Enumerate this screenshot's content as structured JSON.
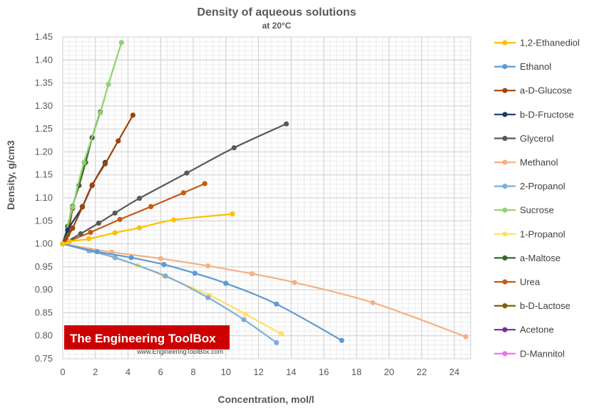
{
  "chart_data": {
    "type": "line",
    "title": "Density of aqueous solutions",
    "subtitle": "at 20°C",
    "xlabel": "Concentration, mol/l",
    "ylabel": "Density, g/cm3",
    "xlim": [
      0,
      25
    ],
    "ylim": [
      0.75,
      1.45
    ],
    "xticks": [
      0,
      2,
      4,
      6,
      8,
      10,
      12,
      14,
      16,
      18,
      20,
      22,
      24
    ],
    "yticks": [
      "0.75",
      "0.80",
      "0.85",
      "0.90",
      "0.95",
      "1.00",
      "1.05",
      "1.10",
      "1.15",
      "1.20",
      "1.25",
      "1.30",
      "1.35",
      "1.40",
      "1.45"
    ],
    "grid": true,
    "legend_position": "right",
    "series": [
      {
        "name": "1,2-Ethanediol",
        "color": "#FFC000",
        "points": [
          [
            0,
            1.0
          ],
          [
            0.4,
            1.005
          ],
          [
            1.6,
            1.011
          ],
          [
            3.2,
            1.024
          ],
          [
            4.7,
            1.035
          ],
          [
            6.8,
            1.052
          ],
          [
            10.4,
            1.065
          ]
        ]
      },
      {
        "name": "Ethanol",
        "color": "#5B9BD5",
        "points": [
          [
            0,
            1.0
          ],
          [
            2.1,
            0.983
          ],
          [
            4.2,
            0.97
          ],
          [
            6.2,
            0.955
          ],
          [
            8.1,
            0.936
          ],
          [
            10.0,
            0.914
          ],
          [
            13.1,
            0.869
          ],
          [
            17.1,
            0.79
          ]
        ]
      },
      {
        "name": "a-D-Glucose",
        "color": "#A0430A",
        "points": [
          [
            0,
            1.0
          ],
          [
            0.2,
            1.008
          ],
          [
            0.6,
            1.034
          ],
          [
            1.2,
            1.08
          ],
          [
            1.8,
            1.128
          ],
          [
            2.6,
            1.174
          ],
          [
            3.4,
            1.224
          ],
          [
            4.3,
            1.28
          ]
        ]
      },
      {
        "name": "b-D-Fructose",
        "color": "#203864",
        "points": [
          [
            0,
            1.0
          ],
          [
            0.3,
            1.03
          ],
          [
            1.2,
            1.081
          ],
          [
            1.8,
            1.127
          ],
          [
            2.6,
            1.177
          ]
        ]
      },
      {
        "name": "Glycerol",
        "color": "#595959",
        "points": [
          [
            0,
            1.0
          ],
          [
            1.1,
            1.022
          ],
          [
            2.2,
            1.045
          ],
          [
            3.2,
            1.067
          ],
          [
            4.7,
            1.099
          ],
          [
            7.6,
            1.154
          ],
          [
            10.5,
            1.209
          ],
          [
            13.7,
            1.261
          ]
        ]
      },
      {
        "name": "Methanol",
        "color": "#F4B183",
        "points": [
          [
            0,
            1.0
          ],
          [
            3.0,
            0.982
          ],
          [
            6.0,
            0.968
          ],
          [
            8.9,
            0.952
          ],
          [
            11.6,
            0.935
          ],
          [
            14.2,
            0.916
          ],
          [
            19.0,
            0.872
          ],
          [
            24.7,
            0.798
          ]
        ]
      },
      {
        "name": "2-Propanol",
        "color": "#7EAED8",
        "points": [
          [
            0,
            1.0
          ],
          [
            1.6,
            0.985
          ],
          [
            3.2,
            0.97
          ],
          [
            6.3,
            0.93
          ],
          [
            8.9,
            0.883
          ],
          [
            11.1,
            0.835
          ],
          [
            13.1,
            0.785
          ]
        ]
      },
      {
        "name": "Sucrose",
        "color": "#8FD170",
        "points": [
          [
            0,
            1.0
          ],
          [
            0.6,
            1.08
          ],
          [
            1.3,
            1.177
          ],
          [
            2.3,
            1.285
          ],
          [
            2.8,
            1.347
          ],
          [
            3.6,
            1.438
          ]
        ]
      },
      {
        "name": "1-Propanol",
        "color": "#FFE066",
        "points": [
          [
            0,
            1.0
          ],
          [
            1.6,
            0.985
          ],
          [
            3.2,
            0.97
          ],
          [
            4.6,
            0.953
          ],
          [
            6.2,
            0.93
          ],
          [
            9.0,
            0.888
          ],
          [
            11.2,
            0.847
          ],
          [
            13.4,
            0.804
          ]
        ]
      },
      {
        "name": "a-Maltose",
        "color": "#38692B",
        "points": [
          [
            0,
            1.0
          ],
          [
            0.3,
            1.038
          ],
          [
            0.6,
            1.082
          ],
          [
            1.0,
            1.127
          ],
          [
            1.4,
            1.177
          ],
          [
            1.8,
            1.231
          ],
          [
            2.3,
            1.287
          ]
        ]
      },
      {
        "name": "Urea",
        "color": "#C55A11",
        "points": [
          [
            0,
            1.0
          ],
          [
            1.7,
            1.025
          ],
          [
            3.5,
            1.053
          ],
          [
            5.4,
            1.081
          ],
          [
            7.4,
            1.111
          ],
          [
            8.7,
            1.131
          ]
        ]
      },
      {
        "name": "b-D-Lactose",
        "color": "#806000",
        "points": [
          [
            0,
            1.0
          ],
          [
            0.3,
            1.02
          ],
          [
            0.6,
            1.077
          ]
        ]
      },
      {
        "name": "Acetone",
        "color": "#7030A0",
        "points": [
          [
            0,
            1.0
          ],
          [
            1.7,
            0.986
          ]
        ]
      },
      {
        "name": "D-Mannitol",
        "color": "#EE6EEE",
        "points": [
          [
            0,
            1.0
          ],
          [
            0.6,
            1.035
          ]
        ]
      }
    ]
  },
  "watermark": {
    "logo_text": "The Engineering ToolBox",
    "url_text": "www.EngineeringToolBox.com",
    "logo_color": "#CC0000"
  }
}
